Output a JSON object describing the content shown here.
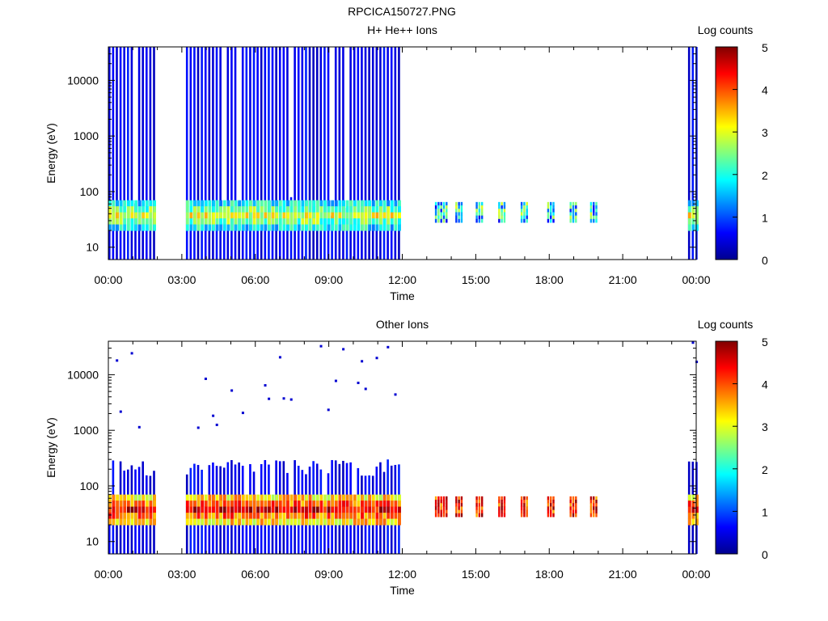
{
  "figure_title": "RPCICA150727.PNG",
  "chart_data": [
    {
      "type": "heatmap",
      "title": "H+ He++ Ions",
      "xlabel": "Time",
      "ylabel": "Energy (eV)",
      "y_scale": "log",
      "ylim": [
        6,
        40000
      ],
      "xlim": [
        "00:00",
        "24:00"
      ],
      "x_ticks": [
        "00:00",
        "03:00",
        "06:00",
        "09:00",
        "12:00",
        "15:00",
        "18:00",
        "21:00",
        "00:00"
      ],
      "y_ticks": [
        "10",
        "100",
        "1000",
        "10000"
      ],
      "colorbar": {
        "label": "Log counts",
        "range": [
          0,
          5
        ],
        "ticks": [
          "0",
          "1",
          "2",
          "3",
          "4",
          "5"
        ]
      },
      "grid": false,
      "data_intervals_utc": [
        [
          "00:00",
          "01:55"
        ],
        [
          "03:10",
          "11:55"
        ],
        [
          "23:40",
          "24:00"
        ]
      ],
      "sparse_sweeps_utc": [
        "13:20",
        "14:10",
        "15:00",
        "15:55",
        "16:50",
        "17:55",
        "18:50",
        "19:40"
      ],
      "background_band_eV": [
        20,
        70
      ],
      "background_band_log_counts": 3
    },
    {
      "type": "heatmap",
      "title": "Other Ions",
      "xlabel": "Time",
      "ylabel": "Energy (eV)",
      "y_scale": "log",
      "ylim": [
        6,
        40000
      ],
      "xlim": [
        "00:00",
        "24:00"
      ],
      "x_ticks": [
        "00:00",
        "03:00",
        "06:00",
        "09:00",
        "12:00",
        "15:00",
        "18:00",
        "21:00",
        "00:00"
      ],
      "y_ticks": [
        "10",
        "100",
        "1000",
        "10000"
      ],
      "colorbar": {
        "label": "Log counts",
        "range": [
          0,
          5
        ],
        "ticks": [
          "0",
          "1",
          "2",
          "3",
          "4",
          "5"
        ]
      },
      "grid": false,
      "data_intervals_utc": [
        [
          "00:00",
          "01:55"
        ],
        [
          "03:10",
          "11:55"
        ],
        [
          "23:40",
          "24:00"
        ]
      ],
      "sparse_sweeps_utc": [
        "13:20",
        "14:10",
        "15:00",
        "15:55",
        "16:50",
        "17:55",
        "18:50",
        "19:40"
      ],
      "background_band_eV": [
        20,
        70
      ],
      "background_band_log_counts": 4.5
    }
  ]
}
